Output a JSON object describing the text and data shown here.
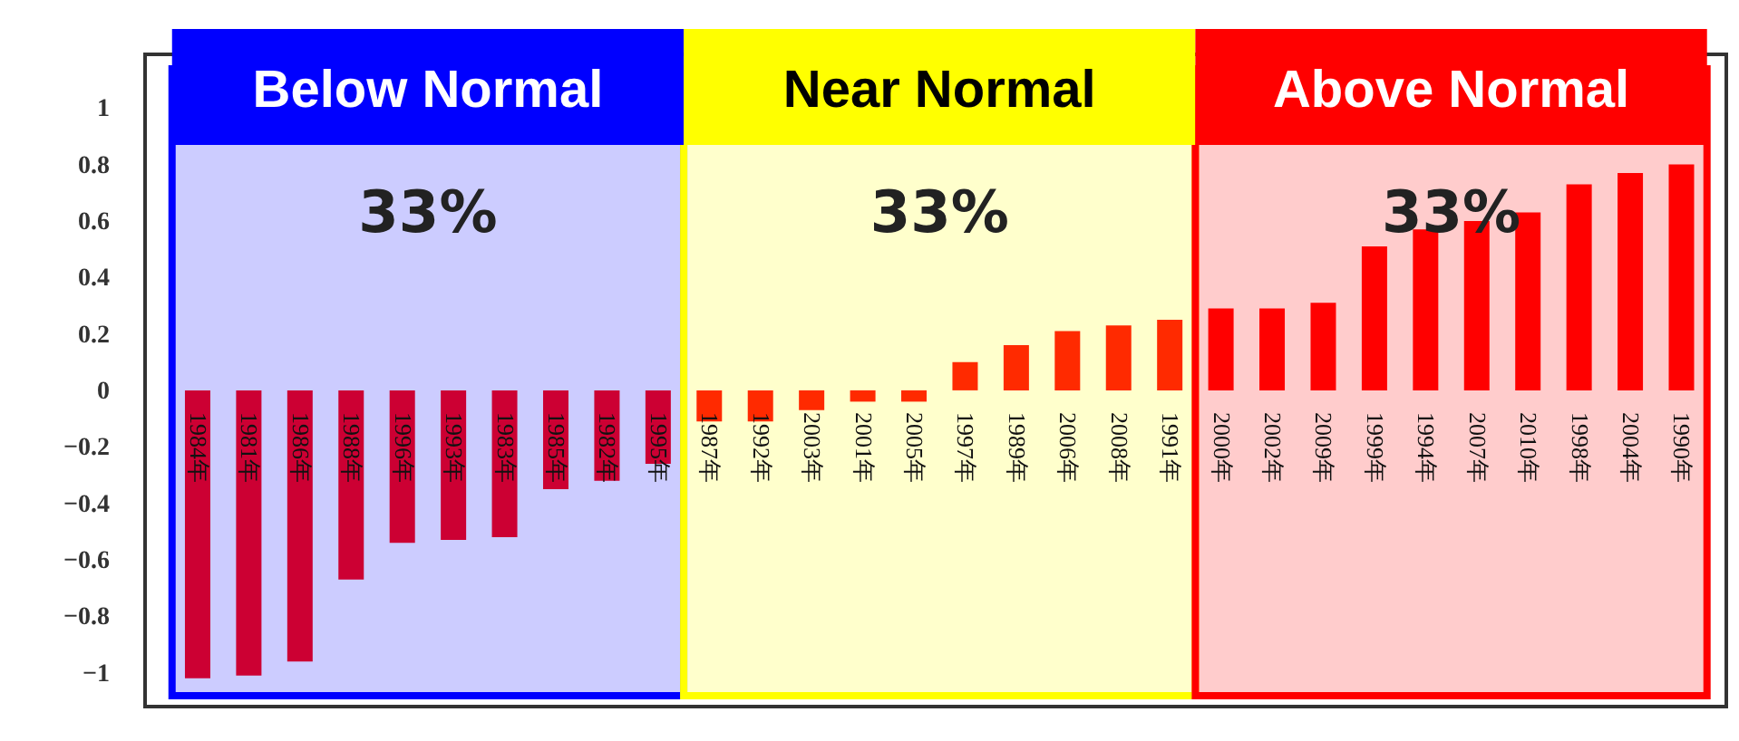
{
  "chart_data": {
    "type": "bar",
    "categories": [
      "1984年",
      "1981年",
      "1986年",
      "1988年",
      "1996年",
      "1993年",
      "1983年",
      "1985年",
      "1982年",
      "1995年",
      "1987年",
      "1992年",
      "2003年",
      "2001年",
      "2005年",
      "1997年",
      "1989年",
      "2006年",
      "2008年",
      "1991年",
      "2000年",
      "2002年",
      "2009年",
      "1999年",
      "1994年",
      "2007年",
      "2010年",
      "1998年",
      "2004年",
      "1990年"
    ],
    "values": [
      -1.02,
      -1.01,
      -0.96,
      -0.67,
      -0.54,
      -0.53,
      -0.52,
      -0.35,
      -0.32,
      -0.26,
      -0.11,
      -0.11,
      -0.07,
      -0.04,
      -0.04,
      0.1,
      0.16,
      0.21,
      0.23,
      0.25,
      0.29,
      0.29,
      0.31,
      0.51,
      0.57,
      0.6,
      0.63,
      0.73,
      0.77,
      0.8
    ],
    "colors": [
      "#cc0033",
      "#cc0033",
      "#cc0033",
      "#cc0033",
      "#cc0033",
      "#cc0033",
      "#cc0033",
      "#cc0033",
      "#cc0033",
      "#cc0033",
      "#ff2a00",
      "#ff2a00",
      "#ff2a00",
      "#ff2a00",
      "#ff2a00",
      "#ff2a00",
      "#ff2a00",
      "#ff2a00",
      "#ff2a00",
      "#ff2a00",
      "#ff0000",
      "#ff0000",
      "#ff0000",
      "#ff0000",
      "#ff0000",
      "#ff0000",
      "#ff0000",
      "#ff0000",
      "#ff0000",
      "#ff0000"
    ],
    "ylim": [
      -1.12,
      1.19
    ],
    "yticks": [
      -1,
      -0.8,
      -0.6,
      -0.4,
      -0.2,
      0,
      0.2,
      0.4,
      0.6,
      0.8,
      1
    ],
    "bands": [
      {
        "axis": "x",
        "from": "1984年",
        "to": "1995年",
        "label": "Below Normal",
        "color": "#0000ff"
      },
      {
        "axis": "x",
        "from": "1987年",
        "to": "1991年",
        "label": "Near Normal",
        "color": "#ffff00"
      },
      {
        "axis": "x",
        "from": "2000年",
        "to": "1990年",
        "label": "Above Normal",
        "color": "#ff0000"
      }
    ],
    "annotations": [
      "33%",
      "33%",
      "33%"
    ],
    "grid": false
  }
}
